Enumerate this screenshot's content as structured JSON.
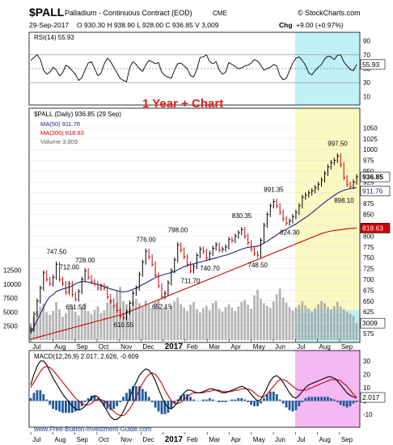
{
  "header": {
    "symbol": "$PALL",
    "name": "Palladium - Continuous Contract (EOD)",
    "exchange": "CME",
    "brand": "© StockCharts.com",
    "date": "29-Sep-2017",
    "ohlc": "O 930.30  H 938.90  L 928.00  C 936.85  V 3,009",
    "chg_label": "Chg",
    "chg": "+9.00 (+0.97%)"
  },
  "annotation": "1 Year + Chart",
  "watermark": "www.Free-Bullion-Investment-Guide.com",
  "colors": {
    "price_up": "#000000",
    "price_down": "#cc0000",
    "ma50": "#1a237e",
    "ma200": "#cc0000",
    "volume": "#999999",
    "rsi_fill_high": "#6a8f4a",
    "highlight_cyan": "#bff0f5",
    "highlight_yellow": "#fbf8c2",
    "highlight_magenta": "#f2b9f2",
    "macd_line": "#000000",
    "signal_line": "#cc0000",
    "histogram": "#1f5a9c"
  },
  "chart_data": [
    {
      "type": "line",
      "panel": "RSI",
      "legend": "RSI(14) 55.93",
      "current_label": "55.93",
      "ylim": [
        0,
        100
      ],
      "yticks": [
        10,
        30,
        50,
        70,
        90
      ],
      "reference_lines": [
        30,
        50,
        70
      ],
      "values": [
        62,
        66,
        70,
        63,
        48,
        42,
        45,
        52,
        48,
        40,
        44,
        55,
        52,
        47,
        42,
        33,
        37,
        48,
        58,
        60,
        50,
        40,
        43,
        57,
        65,
        60,
        52,
        44,
        36,
        33,
        31,
        52,
        60,
        56,
        50,
        46,
        55,
        62,
        60,
        57,
        59,
        45,
        40,
        38,
        36,
        48,
        57,
        58,
        54,
        50,
        40,
        38,
        49,
        66,
        67,
        70,
        60,
        57,
        60,
        48,
        42,
        45,
        59,
        56,
        53,
        50,
        51,
        54,
        55,
        58,
        63,
        61,
        55,
        48,
        50,
        52,
        56,
        54,
        40,
        34,
        36,
        47,
        58,
        65,
        67,
        62,
        55,
        44,
        41,
        47,
        52,
        56,
        64,
        68,
        67,
        63,
        69,
        70,
        60,
        54,
        49,
        47,
        56
      ]
    },
    {
      "type": "line",
      "panel": "price",
      "title": "$PALL (Daily) 936.85 (29 Sep)",
      "series_names": [
        "MA(50) 911.76",
        "MA(200) 818.63",
        "Volume 3,009"
      ],
      "ylim": [
        560,
        1090
      ],
      "yticks": [
        575,
        600,
        625,
        650,
        675,
        700,
        725,
        750,
        775,
        800,
        825,
        850,
        875,
        900,
        925,
        950,
        975,
        1000,
        1025,
        1050
      ],
      "right_labels": [
        "936.85",
        "911.76",
        "818.63",
        "3009"
      ],
      "volume_ticks": [
        "2500",
        "5000",
        "7500",
        "10000",
        "12500"
      ],
      "volume_ylim": [
        0,
        13000
      ],
      "x_labels": [
        "Jul",
        "Aug",
        "Sep",
        "Oct",
        "Nov",
        "Dec",
        "2017",
        "Feb",
        "Mar",
        "Apr",
        "May",
        "Jun",
        "Jul",
        "Aug",
        "Sep"
      ],
      "annotations": [
        {
          "label": "747.50",
          "value": 747.5,
          "i": 8
        },
        {
          "label": "712.00",
          "value": 712,
          "i": 12
        },
        {
          "label": "728.00",
          "value": 728,
          "i": 17
        },
        {
          "label": "651.50",
          "value": 651.5,
          "i": 14
        },
        {
          "label": "610.55",
          "value": 610.55,
          "i": 29
        },
        {
          "label": "776.00",
          "value": 776,
          "i": 36
        },
        {
          "label": "652.15",
          "value": 652.15,
          "i": 41
        },
        {
          "label": "798.00",
          "value": 798,
          "i": 46
        },
        {
          "label": "711.70",
          "value": 711.7,
          "i": 50
        },
        {
          "label": "740.70",
          "value": 740.7,
          "i": 56
        },
        {
          "label": "830.35",
          "value": 830.35,
          "i": 66
        },
        {
          "label": "748.50",
          "value": 748.5,
          "i": 71
        },
        {
          "label": "891.35",
          "value": 891.35,
          "i": 76
        },
        {
          "label": "824.30",
          "value": 824.3,
          "i": 81
        },
        {
          "label": "997.50",
          "value": 997.5,
          "i": 96
        },
        {
          "label": "898.10",
          "value": 898.1,
          "i": 98
        }
      ],
      "close": [
        585,
        620,
        650,
        680,
        715,
        700,
        690,
        705,
        735,
        700,
        690,
        670,
        690,
        665,
        655,
        672,
        700,
        720,
        705,
        695,
        690,
        680,
        685,
        680,
        660,
        650,
        640,
        628,
        615,
        612,
        625,
        645,
        668,
        680,
        712,
        740,
        765,
        752,
        735,
        710,
        685,
        660,
        668,
        692,
        720,
        745,
        780,
        768,
        752,
        735,
        720,
        730,
        755,
        770,
        765,
        750,
        760,
        772,
        780,
        768,
        770,
        775,
        792,
        790,
        800,
        808,
        815,
        800,
        785,
        770,
        760,
        756,
        790,
        825,
        850,
        870,
        880,
        870,
        855,
        840,
        830,
        835,
        845,
        855,
        870,
        890,
        895,
        900,
        905,
        912,
        920,
        930,
        945,
        960,
        970,
        975,
        985,
        965,
        935,
        920,
        915,
        925,
        937
      ],
      "ma50": [
        575,
        590,
        605,
        620,
        635,
        650,
        660,
        665,
        672,
        675,
        678,
        680,
        682,
        685,
        690,
        693,
        695,
        695,
        694,
        692,
        690,
        688,
        686,
        684,
        681,
        678,
        676,
        674,
        672,
        671,
        672,
        674,
        677,
        680,
        684,
        688,
        692,
        696,
        700,
        704,
        707,
        710,
        712,
        714,
        716,
        718,
        722,
        726,
        729,
        732,
        734,
        736,
        738,
        740,
        742,
        744,
        746,
        748,
        750,
        752,
        754,
        756,
        758,
        761,
        764,
        767,
        770,
        772,
        774,
        775,
        776,
        777,
        780,
        784,
        788,
        793,
        798,
        803,
        808,
        812,
        816,
        820,
        824,
        828,
        833,
        838,
        843,
        848,
        854,
        860,
        866,
        872,
        878,
        884,
        889,
        894,
        899,
        903,
        906,
        908,
        910,
        911,
        912
      ],
      "ma200": [
        562,
        564,
        566,
        568,
        570,
        572,
        574,
        576,
        578,
        580,
        582,
        584,
        586,
        588,
        590,
        592,
        594,
        596,
        598,
        600,
        602,
        604,
        606,
        608,
        610,
        612,
        614,
        616,
        618,
        620,
        623,
        626,
        629,
        632,
        635,
        638,
        641,
        644,
        647,
        650,
        653,
        656,
        659,
        662,
        665,
        668,
        671,
        674,
        677,
        680,
        683,
        686,
        689,
        692,
        695,
        698,
        701,
        704,
        707,
        710,
        713,
        716,
        719,
        722,
        725,
        728,
        731,
        734,
        737,
        740,
        743,
        746,
        749,
        752,
        755,
        758,
        761,
        764,
        767,
        770,
        773,
        776,
        779,
        782,
        785,
        788,
        791,
        794,
        797,
        800,
        803,
        806,
        808,
        810,
        812,
        813,
        814,
        815,
        816,
        817,
        818,
        818,
        819
      ],
      "volume": [
        3000,
        4200,
        5200,
        6000,
        6500,
        5000,
        4500,
        5200,
        6800,
        5500,
        4200,
        4800,
        5600,
        6200,
        5100,
        4400,
        5800,
        6600,
        5200,
        4600,
        5400,
        6000,
        4800,
        5300,
        6700,
        7200,
        6100,
        8800,
        9500,
        7000,
        6400,
        5800,
        6900,
        7400,
        6600,
        5900,
        7100,
        6300,
        5700,
        6800,
        7300,
        5600,
        6100,
        5400,
        6200,
        6900,
        7600,
        6400,
        5800,
        5200,
        6300,
        6800,
        5500,
        4900,
        5700,
        6100,
        5300,
        6600,
        7000,
        5600,
        5100,
        5900,
        6400,
        5800,
        5200,
        6000,
        6800,
        7200,
        6300,
        5600,
        8000,
        9000,
        7400,
        6600,
        6100,
        5700,
        6900,
        8200,
        9200,
        7600,
        6700,
        5900,
        5300,
        5800,
        6300,
        6900,
        6200,
        5600,
        5100,
        5700,
        6400,
        7000,
        6600,
        5900,
        5500,
        6100,
        6800,
        6000,
        5500,
        5000,
        4700,
        4300,
        3009
      ]
    },
    {
      "type": "line",
      "panel": "MACD",
      "legend": "MACD(12,26,9) 2.017, 2.626, -0.609",
      "current_label": "2.017",
      "ylim": [
        -18,
        36
      ],
      "yticks": [
        -10,
        0,
        10,
        20,
        30
      ],
      "x_labels": [
        "Jul",
        "Aug",
        "Sep",
        "Oct",
        "Nov",
        "Dec",
        "2017",
        "Feb",
        "Mar",
        "Apr",
        "May",
        "Jun",
        "Jul",
        "Aug",
        "Sep"
      ],
      "macd": [
        12,
        20,
        26,
        30,
        30,
        27,
        22,
        17,
        13,
        9,
        5,
        2,
        -1,
        -4,
        -6,
        -7,
        -6,
        -4,
        -1,
        2,
        4,
        3,
        0,
        -4,
        -8,
        -12,
        -14,
        -14,
        -12,
        -8,
        -3,
        3,
        9,
        14,
        19,
        22,
        24,
        23,
        20,
        15,
        9,
        3,
        -2,
        -5,
        -6,
        -4,
        -1,
        3,
        6,
        8,
        8,
        7,
        6,
        6,
        7,
        8,
        9,
        9,
        8,
        7,
        6,
        6,
        7,
        8,
        9,
        10,
        11,
        10,
        8,
        5,
        2,
        0,
        1,
        5,
        10,
        15,
        18,
        19,
        17,
        14,
        10,
        6,
        3,
        2,
        4,
        7,
        10,
        12,
        13,
        14,
        15,
        16,
        17,
        18,
        18,
        17,
        15,
        12,
        9,
        6,
        4,
        3,
        2
      ],
      "signal": [
        10,
        14,
        18,
        22,
        25,
        26,
        25,
        23,
        20,
        17,
        14,
        11,
        8,
        5,
        2,
        0,
        -2,
        -3,
        -3,
        -2,
        0,
        1,
        1,
        0,
        -2,
        -5,
        -8,
        -10,
        -11,
        -11,
        -9,
        -6,
        -2,
        3,
        8,
        13,
        17,
        20,
        21,
        20,
        17,
        13,
        8,
        4,
        0,
        -2,
        -2,
        -1,
        1,
        3,
        5,
        6,
        6,
        6,
        6,
        7,
        7,
        8,
        8,
        8,
        7,
        7,
        7,
        7,
        8,
        8,
        9,
        9,
        9,
        8,
        6,
        4,
        3,
        3,
        5,
        8,
        11,
        14,
        16,
        16,
        15,
        13,
        11,
        9,
        8,
        8,
        8,
        9,
        10,
        11,
        12,
        13,
        14,
        15,
        16,
        16,
        16,
        15,
        13,
        11,
        8,
        5,
        3
      ]
    }
  ],
  "macd_x_extra": "2017"
}
